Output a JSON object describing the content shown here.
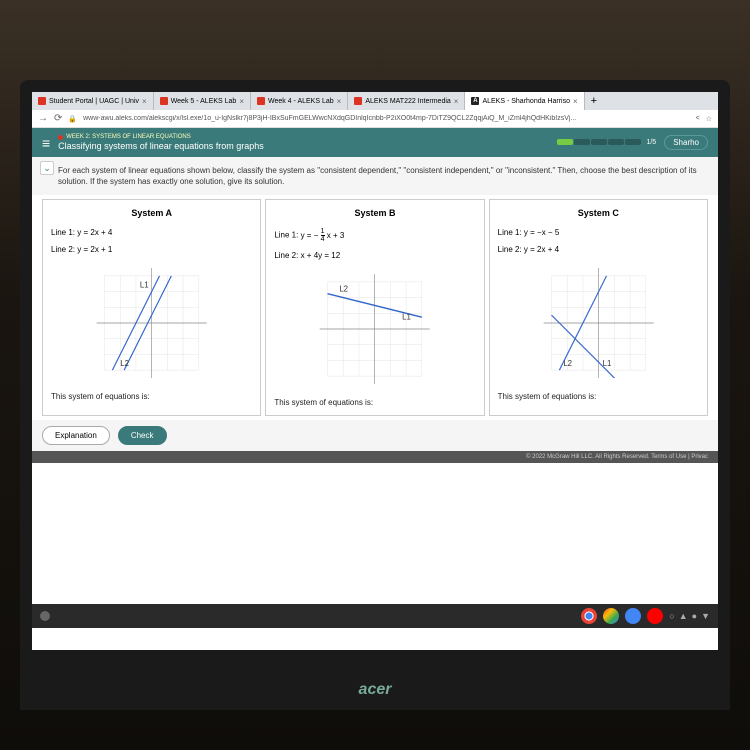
{
  "tabs": [
    {
      "label": "Student Portal | UAGC | Univ",
      "icon": "red"
    },
    {
      "label": "Week 5 - ALEKS Lab",
      "icon": "red"
    },
    {
      "label": "Week 4 - ALEKS Lab",
      "icon": "red"
    },
    {
      "label": "ALEKS MAT222 Intermedia",
      "icon": "red"
    },
    {
      "label": "ALEKS - Sharhonda Harriso",
      "icon": "a",
      "active": true
    }
  ],
  "url": "www-awu.aleks.com/alekscgi/x/lsl.exe/1o_u-IgNslkr7j8P3jH-IBxSuFmGELWwcNXdqGDInlqIcnbb-P2iXO0t4mp-7DiTZ9QCL2ZqqjAiQ_M_iZml4jhQdHKibIzsVj...",
  "lesson": {
    "week": "WEEK 2: SYSTEMS OF LINEAR EQUATIONS",
    "title": "Classifying systems of linear equations from graphs",
    "progress": "1/5",
    "button": "Sharho"
  },
  "instruction": "For each system of linear equations shown below, classify the system as \"consistent dependent,\" \"consistent independent,\" or \"inconsistent.\" Then, choose the best description of its solution. If the system has exactly one solution, give its solution.",
  "systems": [
    {
      "title": "System A",
      "line1_prefix": "Line 1: ",
      "line1_eq": "y = 2x + 4",
      "line2_prefix": "Line 2: ",
      "line2_eq": "y = 2x + 1",
      "footer": "This system of equations is:",
      "graph": {
        "type": "parallel",
        "color1": "#3366cc",
        "color2": "#3366cc"
      }
    },
    {
      "title": "System B",
      "line1_prefix": "Line 1: ",
      "line1_eq_html": "y = − <span class='frac'><span class='n'>1</span><span>4</span></span> x + 3",
      "line2_prefix": "Line 2: ",
      "line2_eq": "x + 4y = 12",
      "footer": "This system of equations is:",
      "graph": {
        "type": "same",
        "color1": "#3366cc"
      }
    },
    {
      "title": "System C",
      "line1_prefix": "Line 1: ",
      "line1_eq": "y = −x − 5",
      "line2_prefix": "Line 2: ",
      "line2_eq": "y = 2x + 4",
      "footer": "This system of equations is:",
      "graph": {
        "type": "intersect",
        "color1": "#3366cc",
        "color2": "#3366cc"
      }
    }
  ],
  "buttons": {
    "explain": "Explanation",
    "check": "Check"
  },
  "copyright": "© 2022 McGraw Hill LLC. All Rights Reserved.   Terms of Use  |  Privac",
  "acer": "acer"
}
